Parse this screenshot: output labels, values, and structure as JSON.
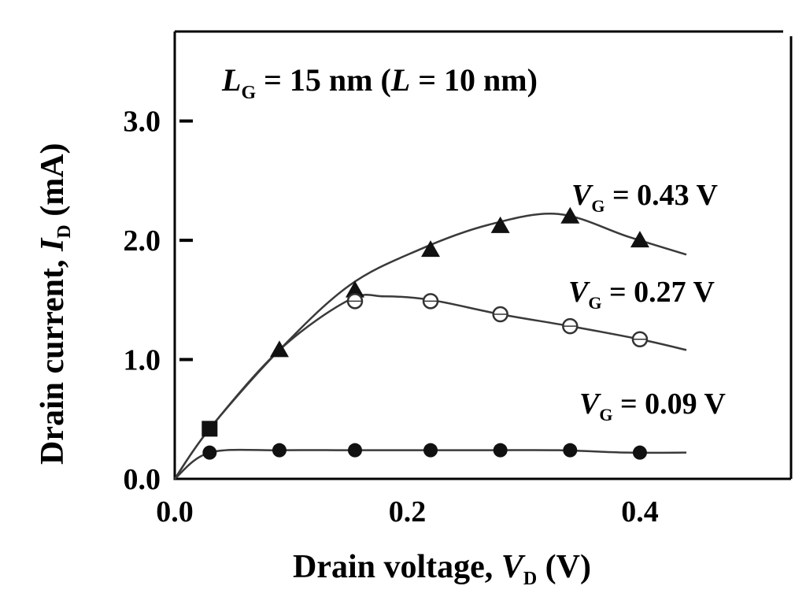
{
  "chart_data": {
    "type": "line",
    "title_parts": {
      "LG": "L",
      "LG_sub": "G",
      "eq1": " = 15 nm (",
      "L": "L",
      "eq2": " = 10 nm)"
    },
    "xlabel": {
      "prefix": "Drain voltage, ",
      "var": "V",
      "sub": "D",
      "suffix": " (V)"
    },
    "ylabel": {
      "prefix": "Drain current, ",
      "var": "I",
      "sub": "D",
      "suffix": " (mA)"
    },
    "xlim": [
      0.0,
      0.53
    ],
    "ylim": [
      0.0,
      3.75
    ],
    "xticks": [
      0.0,
      0.2,
      0.4
    ],
    "xtick_labels": [
      "0.0",
      "0.2",
      "0.4"
    ],
    "yticks": [
      0.0,
      1.0,
      2.0,
      3.0
    ],
    "ytick_labels": [
      "0.0",
      "1.0",
      "2.0",
      "3.0"
    ],
    "series": [
      {
        "label_var": "V",
        "label_sub": "G",
        "label_value": " = 0.43 V",
        "marker": "filled-triangle",
        "x": [
          0.0,
          0.03,
          0.09,
          0.15,
          0.21,
          0.27,
          0.33,
          0.39,
          0.44
        ],
        "y": [
          0.0,
          0.42,
          1.08,
          1.62,
          1.92,
          2.13,
          2.22,
          2.03,
          1.88
        ],
        "marker_x": [
          0.03,
          0.09,
          0.155,
          0.22,
          0.28,
          0.34,
          0.4
        ],
        "marker_y": [
          0.42,
          1.08,
          1.58,
          1.92,
          2.12,
          2.2,
          2.0
        ]
      },
      {
        "label_var": "V",
        "label_sub": "G",
        "label_value": " = 0.27 V",
        "marker": "open-circle",
        "x": [
          0.0,
          0.03,
          0.09,
          0.15,
          0.18,
          0.22,
          0.28,
          0.34,
          0.4,
          0.44
        ],
        "y": [
          0.0,
          0.42,
          1.08,
          1.5,
          1.53,
          1.5,
          1.38,
          1.28,
          1.17,
          1.08
        ],
        "marker_x": [
          0.155,
          0.22,
          0.28,
          0.34,
          0.4
        ],
        "marker_y": [
          1.49,
          1.49,
          1.38,
          1.28,
          1.17
        ]
      },
      {
        "label_var": "V",
        "label_sub": "G",
        "label_value": " = 0.09 V",
        "marker": "filled-circle",
        "x": [
          0.0,
          0.03,
          0.09,
          0.15,
          0.21,
          0.27,
          0.33,
          0.39,
          0.44
        ],
        "y": [
          0.0,
          0.22,
          0.24,
          0.24,
          0.24,
          0.24,
          0.24,
          0.22,
          0.22
        ],
        "marker_x": [
          0.03,
          0.09,
          0.155,
          0.22,
          0.28,
          0.34,
          0.4
        ],
        "marker_y": [
          0.22,
          0.24,
          0.24,
          0.24,
          0.24,
          0.24,
          0.22
        ]
      }
    ]
  }
}
